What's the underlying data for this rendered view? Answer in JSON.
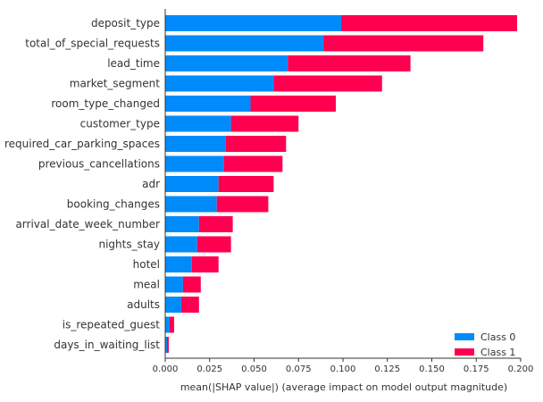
{
  "chart_data": {
    "type": "bar",
    "orientation": "horizontal",
    "stacked": true,
    "categories": [
      "deposit_type",
      "total_of_special_requests",
      "lead_time",
      "market_segment",
      "room_type_changed",
      "customer_type",
      "required_car_parking_spaces",
      "previous_cancellations",
      "adr",
      "booking_changes",
      "arrival_date_week_number",
      "nights_stay",
      "hotel",
      "meal",
      "adults",
      "is_repeated_guest",
      "days_in_waiting_list"
    ],
    "series": [
      {
        "name": "Class 0",
        "color": "#008bfb",
        "values": [
          0.099,
          0.089,
          0.069,
          0.061,
          0.048,
          0.037,
          0.034,
          0.033,
          0.03,
          0.029,
          0.019,
          0.018,
          0.015,
          0.01,
          0.009,
          0.0025,
          0.001
        ]
      },
      {
        "name": "Class 1",
        "color": "#ff0051",
        "values": [
          0.099,
          0.09,
          0.069,
          0.061,
          0.048,
          0.038,
          0.034,
          0.033,
          0.031,
          0.029,
          0.019,
          0.019,
          0.015,
          0.01,
          0.01,
          0.0025,
          0.001
        ]
      }
    ],
    "xlabel": "mean(|SHAP value|) (average impact on model output magnitude)",
    "ylabel": "",
    "title": "",
    "xlim": [
      0,
      0.2
    ],
    "xticks": [
      "0.000",
      "0.025",
      "0.050",
      "0.075",
      "0.100",
      "0.125",
      "0.150",
      "0.175",
      "0.200"
    ],
    "grid": false,
    "legend_position": "bottom-right"
  }
}
